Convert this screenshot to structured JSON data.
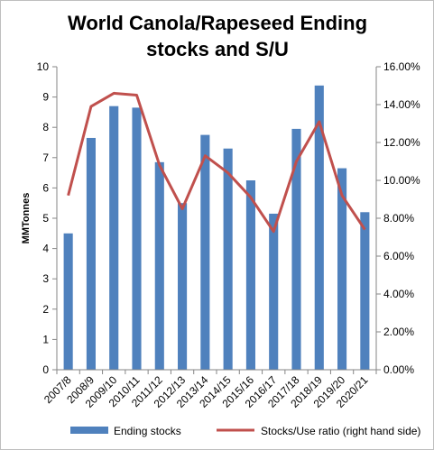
{
  "chart_data": {
    "type": "bar",
    "title_lines": [
      "World Canola/Rapeseed Ending",
      "stocks and S/U"
    ],
    "xlabel": "",
    "ylabel": "MMTonnes",
    "ylim": [
      0,
      10
    ],
    "y_ticks": [
      "0",
      "1",
      "2",
      "3",
      "4",
      "5",
      "6",
      "7",
      "8",
      "9",
      "10"
    ],
    "y2lim": [
      0,
      0.16
    ],
    "y2_ticks": [
      "0.00%",
      "2.00%",
      "4.00%",
      "6.00%",
      "8.00%",
      "10.00%",
      "12.00%",
      "14.00%",
      "16.00%"
    ],
    "grid": false,
    "legend_position": "bottom",
    "categories": [
      "2007/8",
      "2008/9",
      "2009/10",
      "2010/11",
      "2011/12",
      "2012/13",
      "2013/14",
      "2014/15",
      "2015/16",
      "2016/17",
      "2017/18",
      "2018/19",
      "2019/20",
      "2020/21"
    ],
    "series": [
      {
        "name": "Ending stocks",
        "type": "bar",
        "axis": "left",
        "color": "#4f81bd",
        "values": [
          4.5,
          7.65,
          8.7,
          8.65,
          6.85,
          5.5,
          7.75,
          7.3,
          6.25,
          5.15,
          7.95,
          9.38,
          6.65,
          5.2
        ]
      },
      {
        "name": "Stocks/Use ratio (right hand side)",
        "type": "line",
        "axis": "right",
        "color": "#c0504d",
        "values": [
          0.092,
          0.139,
          0.146,
          0.145,
          0.108,
          0.085,
          0.113,
          0.104,
          0.091,
          0.073,
          0.11,
          0.131,
          0.092,
          0.074
        ]
      }
    ]
  }
}
